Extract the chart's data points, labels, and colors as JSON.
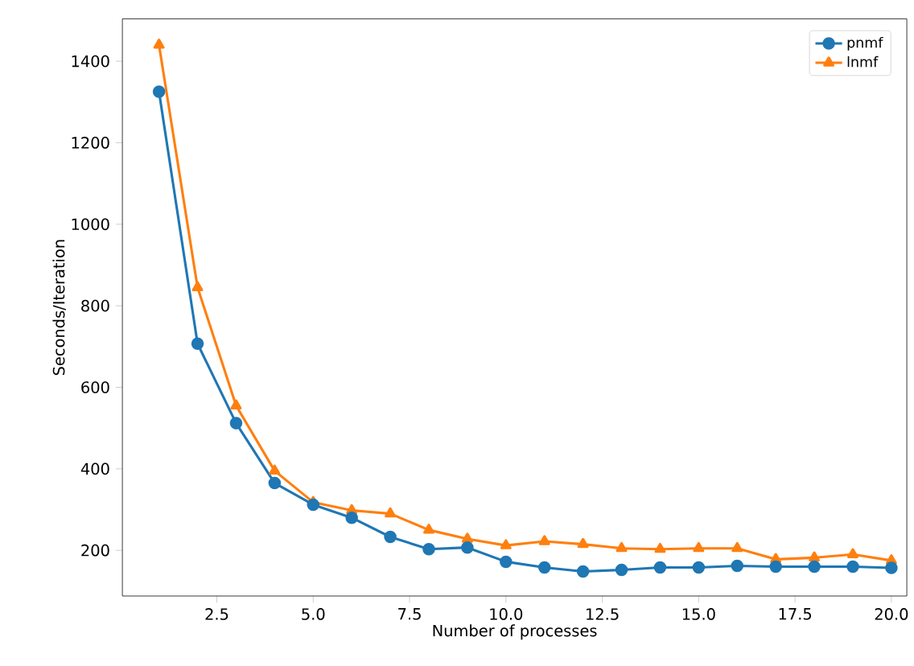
{
  "chart_data": {
    "type": "line",
    "xlabel": "Number of processes",
    "ylabel": "Seconds/Iteration",
    "x": [
      1,
      2,
      3,
      4,
      5,
      6,
      7,
      8,
      9,
      10,
      11,
      12,
      13,
      14,
      15,
      16,
      17,
      18,
      19,
      20
    ],
    "series": [
      {
        "name": "pnmf",
        "color": "#1f77b4",
        "marker": "circle",
        "values": [
          1325,
          707,
          512,
          365,
          312,
          280,
          233,
          203,
          207,
          172,
          158,
          148,
          152,
          158,
          158,
          162,
          160,
          160,
          160,
          157
        ]
      },
      {
        "name": "lnmf",
        "color": "#ff7f0e",
        "marker": "triangle",
        "values": [
          1440,
          845,
          555,
          395,
          318,
          298,
          290,
          250,
          228,
          212,
          222,
          215,
          205,
          203,
          205,
          205,
          178,
          182,
          190,
          175
        ]
      }
    ],
    "xlim": [
      0.05,
      20.4
    ],
    "ylim": [
      88,
      1504
    ],
    "xticks": [
      {
        "value": 2.5,
        "label": "2.5"
      },
      {
        "value": 5,
        "label": "5.0"
      },
      {
        "value": 7.5,
        "label": "7.5"
      },
      {
        "value": 10,
        "label": "10.0"
      },
      {
        "value": 12.5,
        "label": "12.5"
      },
      {
        "value": 15,
        "label": "15.0"
      },
      {
        "value": 17.5,
        "label": "17.5"
      },
      {
        "value": 20,
        "label": "20.0"
      }
    ],
    "yticks": [
      200,
      400,
      600,
      800,
      1000,
      1200,
      1400
    ],
    "legend": "top right",
    "grid": false,
    "line_style": "solid"
  }
}
